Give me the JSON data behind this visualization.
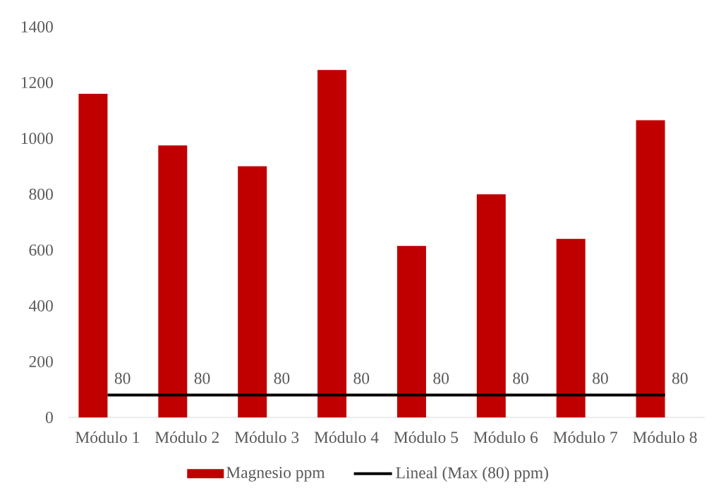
{
  "chart_data": {
    "type": "bar",
    "categories": [
      "Módulo 1",
      "Módulo 2",
      "Módulo 3",
      "Módulo 4",
      "Módulo 5",
      "Módulo 6",
      "Módulo 7",
      "Módulo 8"
    ],
    "series": [
      {
        "name": "Magnesio ppm",
        "color": "#c00000",
        "values": [
          1160,
          975,
          900,
          1245,
          615,
          800,
          640,
          1065
        ]
      },
      {
        "name": "Lineal (Max (80) ppm)",
        "type": "line",
        "color": "#000000",
        "values": [
          80,
          80,
          80,
          80,
          80,
          80,
          80,
          80
        ],
        "value_labels": [
          "80",
          "80",
          "80",
          "80",
          "80",
          "80",
          "80",
          "80"
        ]
      }
    ],
    "ylim": [
      0,
      1400
    ],
    "yticks": [
      0,
      200,
      400,
      600,
      800,
      1000,
      1200,
      1400
    ],
    "legend": "bottom"
  }
}
